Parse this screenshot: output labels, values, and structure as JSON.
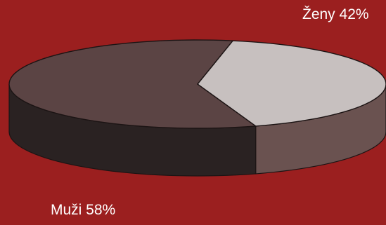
{
  "chart_data": {
    "type": "pie",
    "title": "",
    "categories": [
      "Muži",
      "Ženy"
    ],
    "values": [
      58,
      42
    ],
    "labels": [
      "Muži 58%",
      "Ženy 42%"
    ],
    "colors": {
      "background": "#9b1f1f",
      "muzi_top": "#5b4444",
      "muzi_side": "#2a2222",
      "zeny_top": "#c7c0bf",
      "zeny_side": "#6a5250",
      "outline": "#1c1414"
    },
    "style": "3d-exploded-ellipse"
  }
}
